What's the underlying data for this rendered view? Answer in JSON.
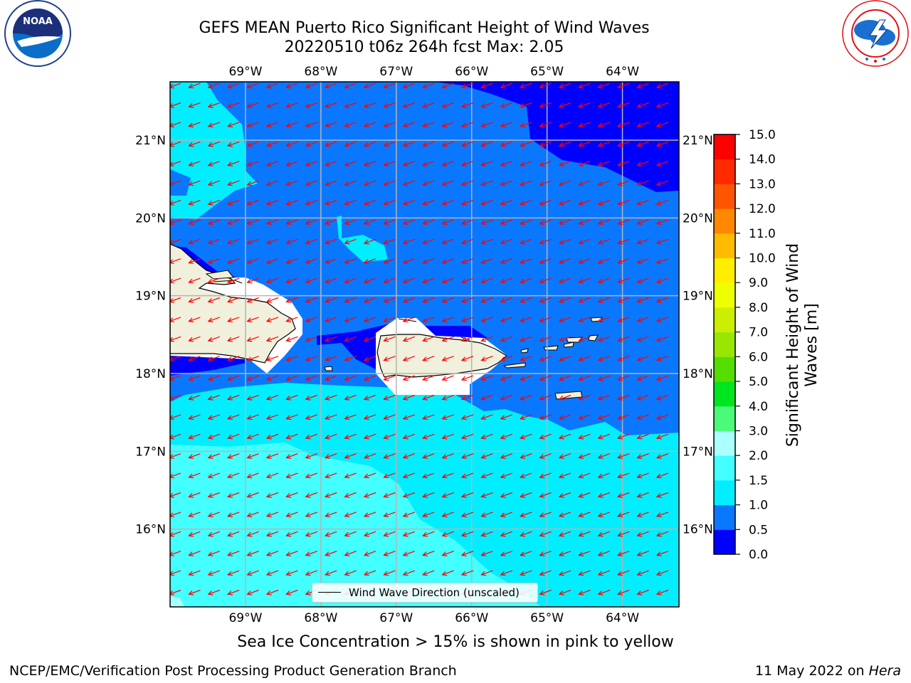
{
  "title_line1": "GEFS MEAN Puerto Rico Significant Height of Wind Waves",
  "title_line2": "20220510 t06z 264h fcst   Max: 2.05",
  "logos": {
    "left": "noaa-logo",
    "right": "nws-logo"
  },
  "axes": {
    "lon_labels": [
      "69°W",
      "68°W",
      "67°W",
      "66°W",
      "65°W",
      "64°W"
    ],
    "lat_labels": [
      "21°N",
      "20°N",
      "19°N",
      "18°N",
      "17°N",
      "16°N"
    ],
    "lon_range": [
      -70.0,
      -63.25
    ],
    "lat_range": [
      15.0,
      21.75
    ],
    "grid": true
  },
  "legend": {
    "label": "Wind Wave Direction (unscaled)",
    "placement": "bottom-center"
  },
  "colorbar": {
    "title_line1": "Significant Height of Wind",
    "title_line2": "Waves [m]",
    "ticks": [
      "0.0",
      "0.5",
      "1.0",
      "1.5",
      "2.0",
      "3.0",
      "4.0",
      "5.0",
      "6.0",
      "7.0",
      "8.0",
      "9.0",
      "10.0",
      "11.0",
      "12.0",
      "13.0",
      "14.0",
      "15.0"
    ],
    "colors": [
      "#0000ff",
      "#0a78fe",
      "#00eeff",
      "#44ffff",
      "#aaffff",
      "#4cfa7a",
      "#00e61e",
      "#55dd00",
      "#99e600",
      "#ccee00",
      "#eeff00",
      "#ffee00",
      "#ffbb00",
      "#ff8800",
      "#ff5500",
      "#ff2a00",
      "#ff0000"
    ]
  },
  "fill_colors": {
    "land": "#f0f0dc",
    "land_mask": "#ffffff",
    "arrows": "#ff0000",
    "grid": "#b4b4b4"
  },
  "chart_data": {
    "type": "heatmap",
    "title": "GEFS MEAN Puerto Rico Significant Height of Wind Waves",
    "subtitle": "20220510 t06z 264h fcst   Max: 2.05",
    "xlabel": "",
    "ylabel": "",
    "xlim": [
      -70.0,
      -63.25
    ],
    "ylim": [
      15.0,
      21.75
    ],
    "max_value": 2.05,
    "arrow_direction_deg": 250
  },
  "footer": {
    "note": "Sea Ice Concentration > 15% is shown in pink to yellow",
    "credit": "NCEP/EMC/Verification Post Processing Product Generation Branch",
    "date_prefix": "11 May 2022 on ",
    "date_host": "Hera"
  }
}
